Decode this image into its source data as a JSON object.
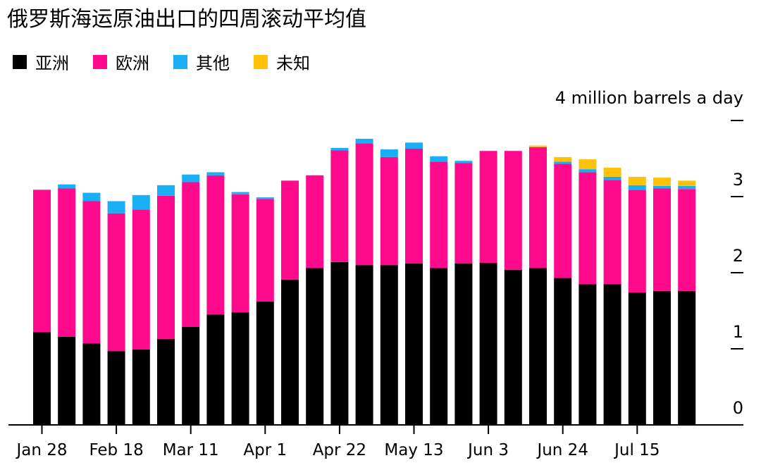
{
  "title": "俄罗斯海运原油出口的四周滚动平均值",
  "legend": [
    {
      "label": "亚洲",
      "color": "#000000"
    },
    {
      "label": "欧洲",
      "color": "#ff0a8c"
    },
    {
      "label": "其他",
      "color": "#1aaef5"
    },
    {
      "label": "未知",
      "color": "#ffc20a"
    }
  ],
  "chart_data": {
    "type": "bar",
    "stacked": true,
    "unit_label": "4 million barrels a day",
    "ylim": [
      0,
      4
    ],
    "y_ticks": [
      "0",
      "1",
      "2",
      "3",
      ""
    ],
    "x_tick_labels": [
      {
        "index": 0,
        "label": "Jan 28"
      },
      {
        "index": 3,
        "label": "Feb 18"
      },
      {
        "index": 6,
        "label": "Mar 11"
      },
      {
        "index": 9,
        "label": "Apr 1"
      },
      {
        "index": 12,
        "label": "Apr 22"
      },
      {
        "index": 15,
        "label": "May 13"
      },
      {
        "index": 18,
        "label": "Jun 3"
      },
      {
        "index": 21,
        "label": "Jun 24"
      },
      {
        "index": 24,
        "label": "Jul 15"
      }
    ],
    "series": [
      {
        "name": "亚洲",
        "color": "#000000",
        "values": [
          1.22,
          1.16,
          1.07,
          0.97,
          0.99,
          1.13,
          1.29,
          1.45,
          1.48,
          1.62,
          1.91,
          2.06,
          2.14,
          2.1,
          2.1,
          2.12,
          2.06,
          2.12,
          2.13,
          2.04,
          2.06,
          1.93,
          1.85,
          1.85,
          1.74,
          1.76,
          1.76
        ]
      },
      {
        "name": "欧洲",
        "color": "#ff0a8c",
        "values": [
          1.87,
          1.95,
          1.87,
          1.81,
          1.84,
          1.88,
          1.9,
          1.83,
          1.55,
          1.35,
          1.3,
          1.22,
          1.47,
          1.6,
          1.42,
          1.51,
          1.4,
          1.32,
          1.47,
          1.56,
          1.59,
          1.5,
          1.47,
          1.37,
          1.35,
          1.35,
          1.34
        ]
      },
      {
        "name": "其他",
        "color": "#1aaef5",
        "values": [
          0.0,
          0.05,
          0.11,
          0.16,
          0.19,
          0.14,
          0.1,
          0.04,
          0.03,
          0.02,
          0.0,
          0.0,
          0.03,
          0.06,
          0.1,
          0.08,
          0.07,
          0.03,
          0.0,
          0.0,
          0.0,
          0.03,
          0.04,
          0.04,
          0.06,
          0.03,
          0.04
        ]
      },
      {
        "name": "未知",
        "color": "#ffc20a",
        "values": [
          0.0,
          0.0,
          0.0,
          0.0,
          0.0,
          0.0,
          0.0,
          0.0,
          0.0,
          0.0,
          0.0,
          0.0,
          0.0,
          0.0,
          0.0,
          0.0,
          0.0,
          0.0,
          0.0,
          0.0,
          0.02,
          0.06,
          0.13,
          0.12,
          0.11,
          0.11,
          0.07
        ]
      }
    ]
  }
}
